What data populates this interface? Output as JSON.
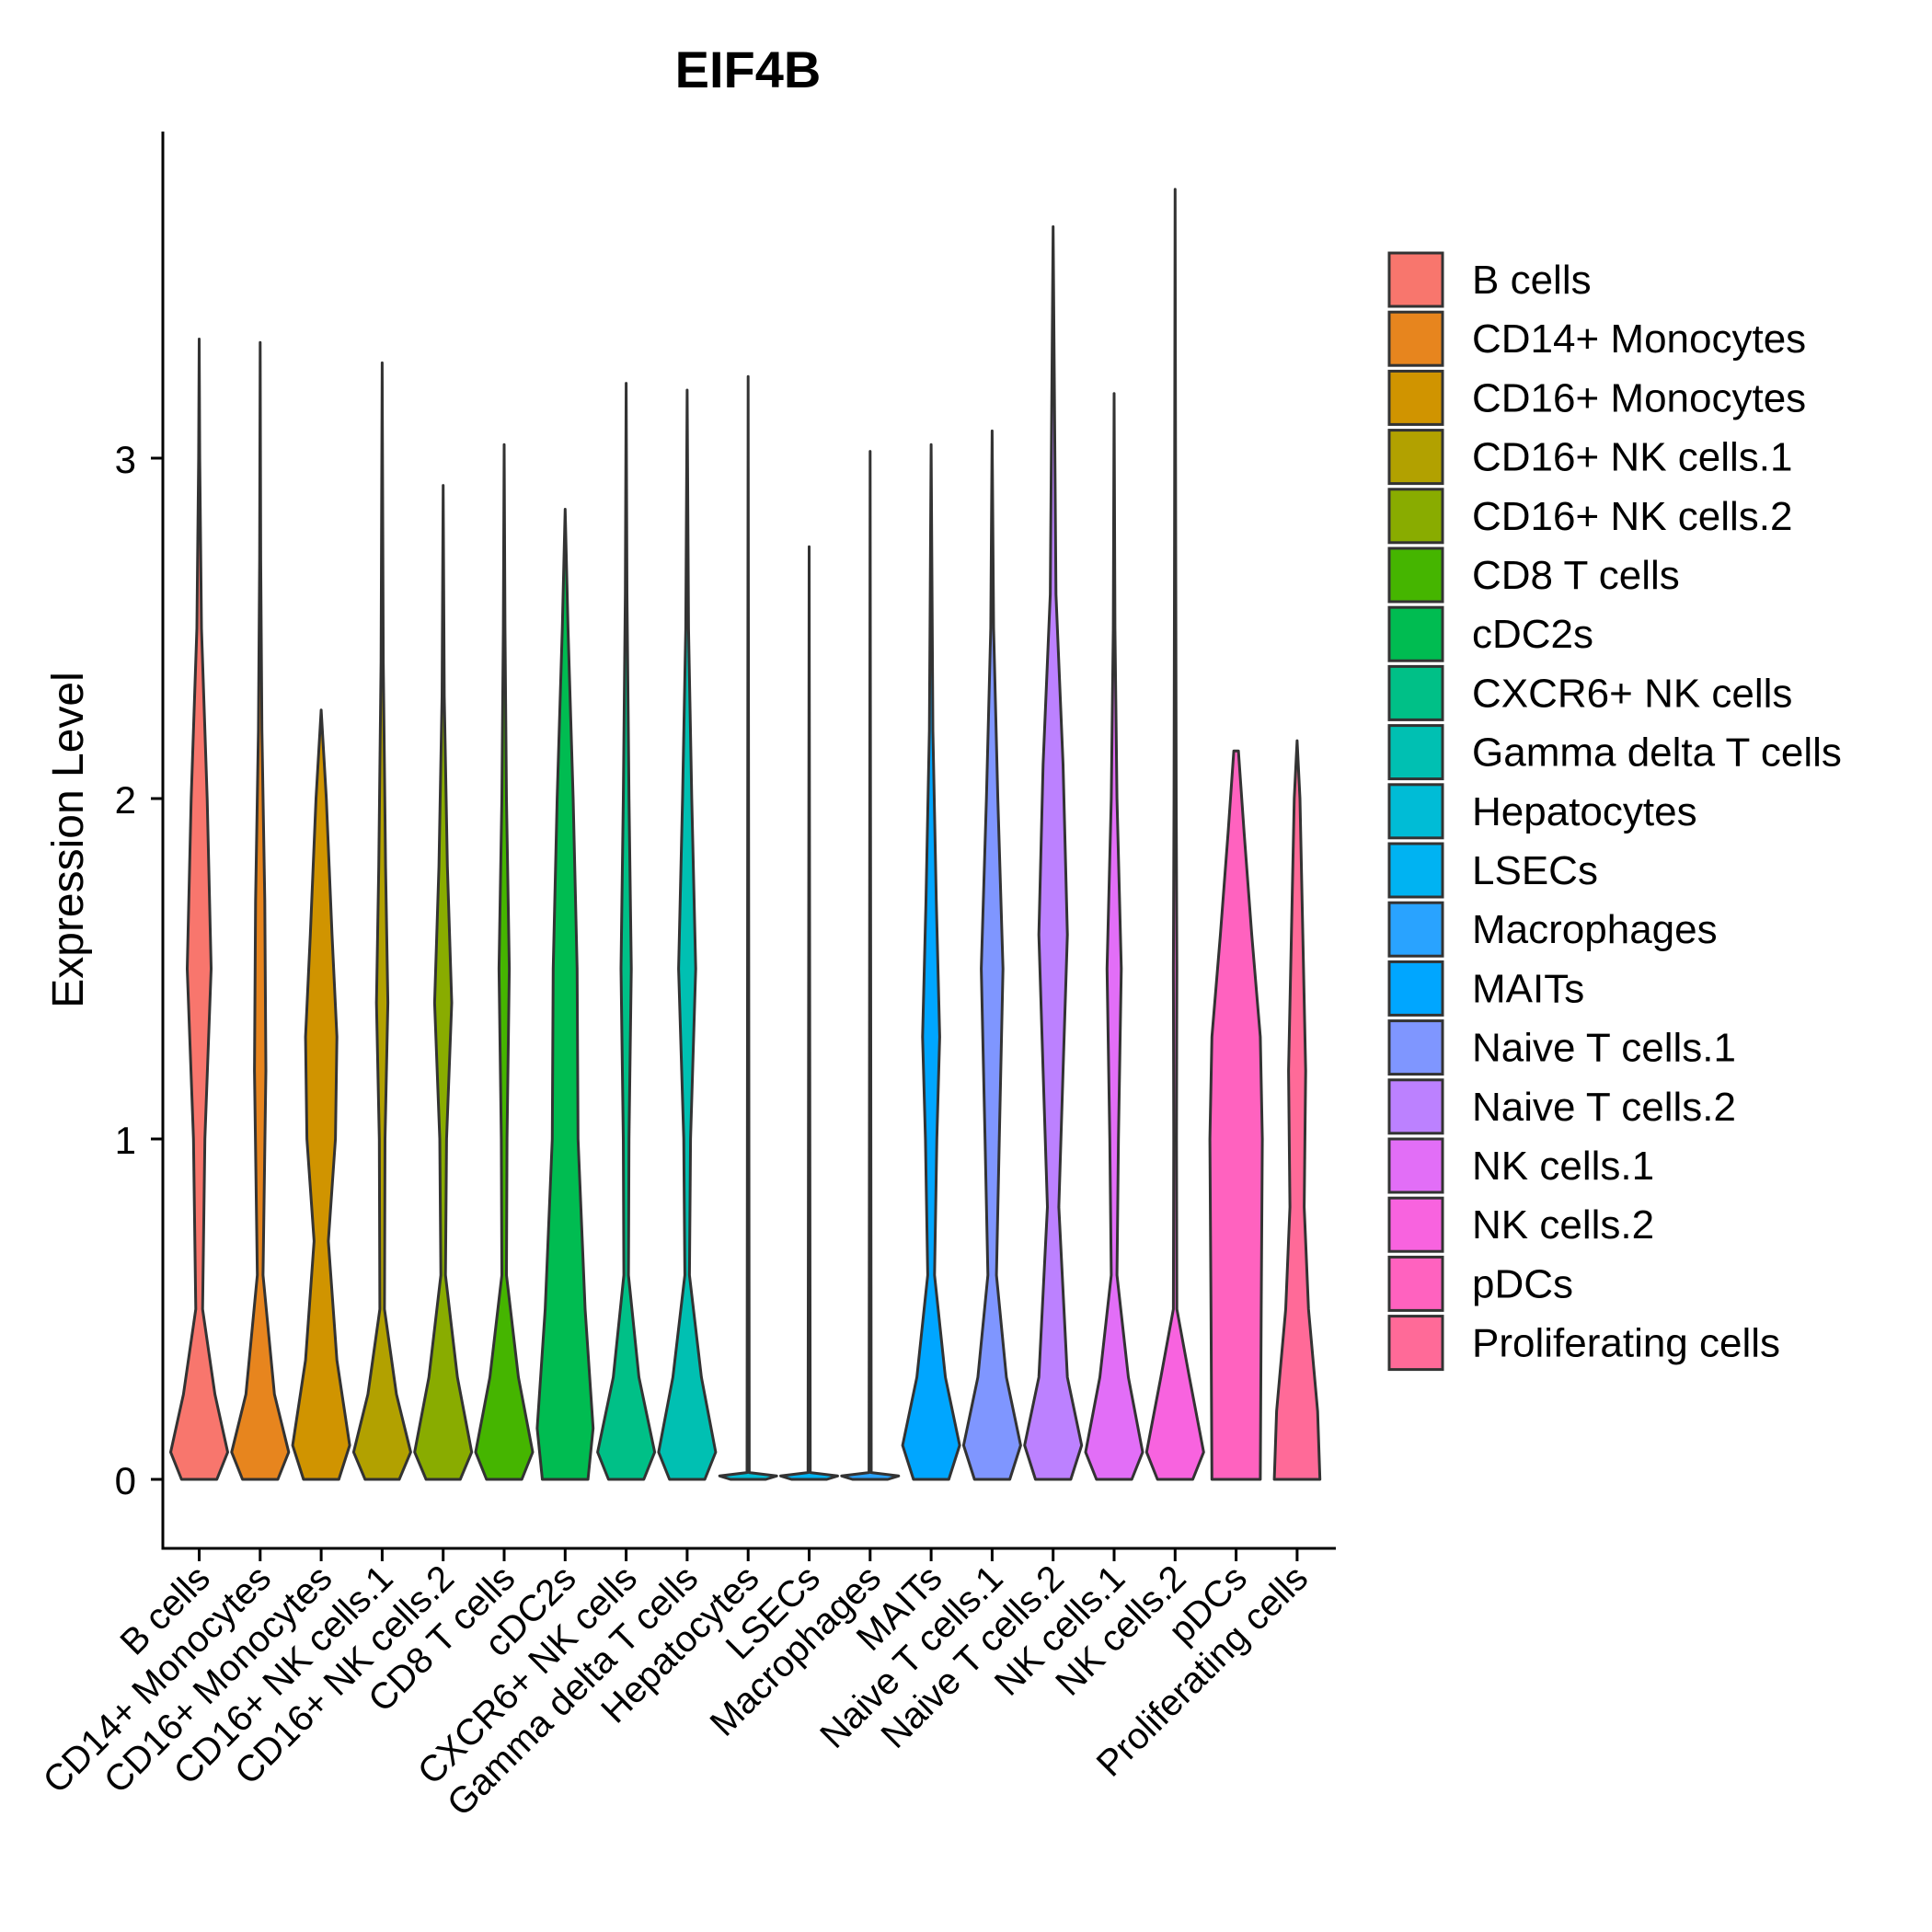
{
  "chart_data": {
    "type": "violin",
    "title": "EIF4B",
    "xlabel": "",
    "ylabel": "Expression Level",
    "ylim": [
      -0.18,
      3.9
    ],
    "yticks": [
      0,
      1,
      2,
      3
    ],
    "grid": false,
    "legend_position": "right",
    "categories": [
      {
        "name": "B cells",
        "color": "#F8766D",
        "max": 3.35,
        "dist": [
          [
            0,
            0.62
          ],
          [
            0.08,
            1.0
          ],
          [
            0.25,
            0.55
          ],
          [
            0.5,
            0.12
          ],
          [
            1.0,
            0.2
          ],
          [
            1.5,
            0.42
          ],
          [
            2.0,
            0.28
          ],
          [
            2.5,
            0.08
          ],
          [
            3.0,
            0.02
          ],
          [
            3.35,
            0.0
          ]
        ]
      },
      {
        "name": "CD14+ Monocytes",
        "color": "#E7851E",
        "max": 3.34,
        "dist": [
          [
            0,
            0.62
          ],
          [
            0.08,
            1.0
          ],
          [
            0.25,
            0.5
          ],
          [
            0.6,
            0.1
          ],
          [
            1.2,
            0.2
          ],
          [
            1.7,
            0.16
          ],
          [
            2.2,
            0.06
          ],
          [
            2.7,
            0.02
          ],
          [
            3.34,
            0.0
          ]
        ]
      },
      {
        "name": "CD16+ Monocytes",
        "color": "#D09400",
        "max": 2.26,
        "dist": [
          [
            0,
            0.62
          ],
          [
            0.1,
            1.0
          ],
          [
            0.35,
            0.55
          ],
          [
            0.7,
            0.25
          ],
          [
            1.0,
            0.5
          ],
          [
            1.3,
            0.55
          ],
          [
            1.6,
            0.38
          ],
          [
            2.0,
            0.18
          ],
          [
            2.26,
            0.0
          ]
        ]
      },
      {
        "name": "CD16+ NK cells.1",
        "color": "#B2A100",
        "max": 3.28,
        "dist": [
          [
            0,
            0.6
          ],
          [
            0.08,
            1.0
          ],
          [
            0.25,
            0.5
          ],
          [
            0.5,
            0.08
          ],
          [
            1.0,
            0.1
          ],
          [
            1.4,
            0.2
          ],
          [
            1.8,
            0.12
          ],
          [
            2.4,
            0.04
          ],
          [
            3.28,
            0.0
          ]
        ]
      },
      {
        "name": "CD16+ NK cells.2",
        "color": "#89AC00",
        "max": 2.92,
        "dist": [
          [
            0,
            0.6
          ],
          [
            0.08,
            1.0
          ],
          [
            0.3,
            0.5
          ],
          [
            0.6,
            0.08
          ],
          [
            1.0,
            0.12
          ],
          [
            1.4,
            0.3
          ],
          [
            1.8,
            0.15
          ],
          [
            2.3,
            0.04
          ],
          [
            2.92,
            0.0
          ]
        ]
      },
      {
        "name": "CD8 T cells",
        "color": "#45B500",
        "max": 3.04,
        "dist": [
          [
            0,
            0.62
          ],
          [
            0.08,
            1.0
          ],
          [
            0.3,
            0.5
          ],
          [
            0.6,
            0.08
          ],
          [
            1.0,
            0.1
          ],
          [
            1.5,
            0.18
          ],
          [
            2.0,
            0.08
          ],
          [
            2.5,
            0.03
          ],
          [
            3.04,
            0.0
          ]
        ]
      },
      {
        "name": "cDC2s",
        "color": "#00BC51",
        "max": 2.85,
        "dist": [
          [
            0,
            0.8
          ],
          [
            0.15,
            0.98
          ],
          [
            0.5,
            0.7
          ],
          [
            1.0,
            0.45
          ],
          [
            1.5,
            0.42
          ],
          [
            2.0,
            0.28
          ],
          [
            2.5,
            0.1
          ],
          [
            2.85,
            0.0
          ]
        ]
      },
      {
        "name": "CXCR6+ NK cells",
        "color": "#00C087",
        "max": 3.22,
        "dist": [
          [
            0,
            0.62
          ],
          [
            0.08,
            1.0
          ],
          [
            0.3,
            0.45
          ],
          [
            0.6,
            0.08
          ],
          [
            1.0,
            0.1
          ],
          [
            1.5,
            0.18
          ],
          [
            2.0,
            0.1
          ],
          [
            2.6,
            0.03
          ],
          [
            3.22,
            0.0
          ]
        ]
      },
      {
        "name": "Gamma delta T cells",
        "color": "#00C0B2",
        "max": 3.2,
        "dist": [
          [
            0,
            0.62
          ],
          [
            0.08,
            1.0
          ],
          [
            0.3,
            0.5
          ],
          [
            0.6,
            0.08
          ],
          [
            1.0,
            0.12
          ],
          [
            1.5,
            0.3
          ],
          [
            2.0,
            0.16
          ],
          [
            2.5,
            0.05
          ],
          [
            3.2,
            0.0
          ]
        ]
      },
      {
        "name": "Hepatocytes",
        "color": "#00BCD6",
        "max": 3.24,
        "dist": [
          [
            0,
            0.62
          ],
          [
            0.01,
            1.0
          ],
          [
            0.02,
            0.04
          ],
          [
            3.24,
            0.0
          ]
        ]
      },
      {
        "name": "LSECs",
        "color": "#00B3F2",
        "max": 2.74,
        "dist": [
          [
            0,
            0.62
          ],
          [
            0.01,
            1.0
          ],
          [
            0.02,
            0.04
          ],
          [
            2.74,
            0.0
          ]
        ]
      },
      {
        "name": "Macrophages",
        "color": "#29A3FF",
        "max": 3.02,
        "dist": [
          [
            0,
            0.62
          ],
          [
            0.01,
            1.0
          ],
          [
            0.02,
            0.04
          ],
          [
            3.02,
            0.0
          ]
        ]
      },
      {
        "name": "MAITs",
        "color": "#00A6FF",
        "max": 3.04,
        "dist": [
          [
            0,
            0.62
          ],
          [
            0.1,
            1.0
          ],
          [
            0.3,
            0.5
          ],
          [
            0.6,
            0.12
          ],
          [
            1.0,
            0.2
          ],
          [
            1.3,
            0.3
          ],
          [
            1.7,
            0.18
          ],
          [
            2.2,
            0.06
          ],
          [
            3.04,
            0.0
          ]
        ]
      },
      {
        "name": "Naive T cells.1",
        "color": "#7F96FF",
        "max": 3.08,
        "dist": [
          [
            0,
            0.62
          ],
          [
            0.1,
            1.0
          ],
          [
            0.3,
            0.5
          ],
          [
            0.6,
            0.15
          ],
          [
            1.0,
            0.25
          ],
          [
            1.5,
            0.38
          ],
          [
            2.0,
            0.2
          ],
          [
            2.5,
            0.05
          ],
          [
            3.08,
            0.0
          ]
        ]
      },
      {
        "name": "Naive T cells.2",
        "color": "#BC81FF",
        "max": 3.68,
        "dist": [
          [
            0,
            0.62
          ],
          [
            0.1,
            1.0
          ],
          [
            0.3,
            0.5
          ],
          [
            0.8,
            0.2
          ],
          [
            1.2,
            0.35
          ],
          [
            1.6,
            0.5
          ],
          [
            2.1,
            0.35
          ],
          [
            2.6,
            0.1
          ],
          [
            3.68,
            0.0
          ]
        ]
      },
      {
        "name": "NK cells.1",
        "color": "#E26EF7",
        "max": 3.19,
        "dist": [
          [
            0,
            0.62
          ],
          [
            0.08,
            1.0
          ],
          [
            0.3,
            0.5
          ],
          [
            0.6,
            0.1
          ],
          [
            1.0,
            0.15
          ],
          [
            1.5,
            0.25
          ],
          [
            2.0,
            0.1
          ],
          [
            2.5,
            0.03
          ],
          [
            3.19,
            0.0
          ]
        ]
      },
      {
        "name": "NK cells.2",
        "color": "#F863DF",
        "max": 3.79,
        "dist": [
          [
            0,
            0.62
          ],
          [
            0.08,
            1.0
          ],
          [
            0.3,
            0.5
          ],
          [
            0.5,
            0.06
          ],
          [
            1.0,
            0.05
          ],
          [
            1.5,
            0.06
          ],
          [
            2.0,
            0.04
          ],
          [
            2.8,
            0.02
          ],
          [
            3.79,
            0.0
          ]
        ]
      },
      {
        "name": "pDCs",
        "color": "#FF62BF",
        "max": 2.14,
        "dist": [
          [
            0,
            0.85
          ],
          [
            0.5,
            0.88
          ],
          [
            1.0,
            0.92
          ],
          [
            1.3,
            0.85
          ],
          [
            1.6,
            0.55
          ],
          [
            1.9,
            0.28
          ],
          [
            2.14,
            0.08
          ]
        ]
      },
      {
        "name": "Proliferating cells",
        "color": "#FF6A98",
        "max": 2.17,
        "dist": [
          [
            0,
            0.8
          ],
          [
            0.2,
            0.72
          ],
          [
            0.5,
            0.4
          ],
          [
            0.8,
            0.25
          ],
          [
            1.2,
            0.3
          ],
          [
            1.6,
            0.2
          ],
          [
            2.0,
            0.1
          ],
          [
            2.17,
            0.0
          ]
        ]
      }
    ]
  }
}
